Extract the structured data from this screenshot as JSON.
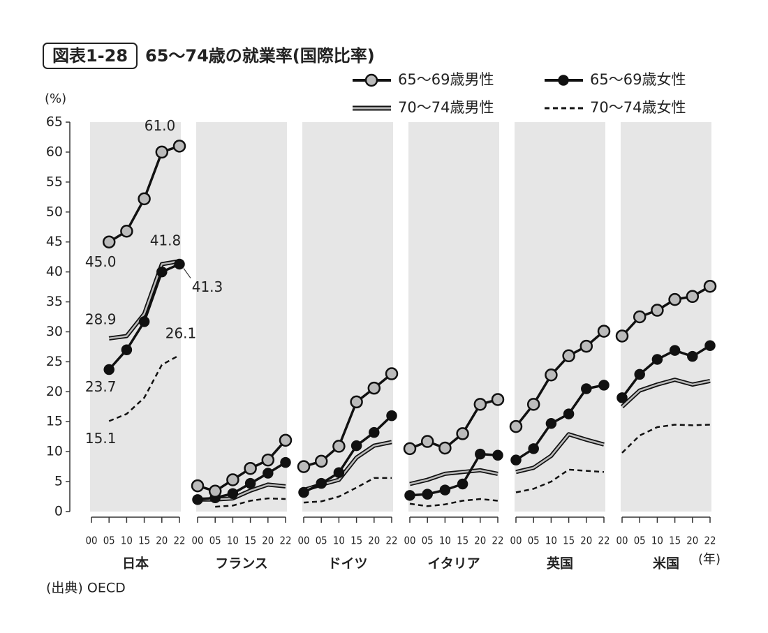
{
  "chart_data": {
    "type": "line",
    "figure_label": "図表1-28",
    "title": "65〜74歳の就業率(国際比率)",
    "y_label": "(%)",
    "x_unit": "(年)",
    "source": "(出典) OECD",
    "x": [
      "00",
      "05",
      "10",
      "15",
      "20",
      "22"
    ],
    "ylim": [
      0,
      65
    ],
    "yticks": [
      0,
      5,
      10,
      15,
      20,
      25,
      30,
      35,
      40,
      45,
      50,
      55,
      60,
      65
    ],
    "series": [
      {
        "name": "65〜69歳男性",
        "color": "#111111",
        "style": "marker-gray"
      },
      {
        "name": "65〜69歳女性",
        "color": "#111111",
        "style": "marker-black"
      },
      {
        "name": "70〜74歳男性",
        "color": "#111111",
        "style": "double"
      },
      {
        "name": "70〜74歳女性",
        "color": "#111111",
        "style": "dashed"
      }
    ],
    "panels": [
      {
        "name": "日本",
        "values": [
          [
            null,
            45.0,
            46.8,
            52.2,
            60.0,
            61.0
          ],
          [
            null,
            23.7,
            27.0,
            31.7,
            40.0,
            41.3
          ],
          [
            null,
            28.9,
            29.3,
            33.0,
            41.3,
            41.8
          ],
          [
            null,
            15.1,
            16.3,
            19.0,
            24.5,
            26.1
          ]
        ],
        "value_labels": [
          [
            null,
            "45.0",
            null,
            null,
            null,
            "61.0"
          ],
          [
            null,
            "23.7",
            null,
            null,
            null,
            "41.3"
          ],
          [
            null,
            "28.9",
            null,
            null,
            null,
            "41.8"
          ],
          [
            null,
            "15.1",
            null,
            null,
            null,
            "26.1"
          ]
        ]
      },
      {
        "name": "フランス",
        "values": [
          [
            4.3,
            3.4,
            5.3,
            7.2,
            8.6,
            11.9
          ],
          [
            2.0,
            2.3,
            3.0,
            4.7,
            6.4,
            8.2
          ],
          [
            2.0,
            2.0,
            2.2,
            3.5,
            4.5,
            4.2
          ],
          [
            null,
            0.8,
            1.0,
            1.8,
            2.2,
            2.1
          ]
        ]
      },
      {
        "name": "ドイツ",
        "values": [
          [
            7.5,
            8.4,
            10.9,
            18.3,
            20.6,
            23.0
          ],
          [
            3.2,
            4.7,
            6.5,
            11.0,
            13.2,
            16.0
          ],
          [
            3.6,
            4.5,
            5.3,
            9.0,
            11.0,
            11.6
          ],
          [
            1.5,
            1.7,
            2.5,
            4.0,
            5.6,
            5.6
          ]
        ]
      },
      {
        "name": "イタリア",
        "values": [
          [
            10.5,
            11.7,
            10.6,
            13.0,
            17.9,
            18.7
          ],
          [
            2.7,
            2.9,
            3.6,
            4.6,
            9.6,
            9.4
          ],
          [
            4.6,
            5.3,
            6.3,
            6.6,
            6.9,
            6.3
          ],
          [
            1.3,
            0.9,
            1.2,
            1.8,
            2.1,
            1.8
          ]
        ]
      },
      {
        "name": "英国",
        "values": [
          [
            14.2,
            17.9,
            22.8,
            26.0,
            27.6,
            30.1
          ],
          [
            8.6,
            10.5,
            14.7,
            16.3,
            20.5,
            21.1
          ],
          [
            6.6,
            7.3,
            9.3,
            12.9,
            12.0,
            11.2
          ],
          [
            3.2,
            3.8,
            5.0,
            7.0,
            6.8,
            6.6
          ]
        ]
      },
      {
        "name": "米国",
        "values": [
          [
            29.3,
            32.5,
            33.6,
            35.4,
            35.9,
            37.6
          ],
          [
            19.0,
            22.9,
            25.4,
            26.9,
            25.9,
            27.7
          ],
          [
            17.5,
            20.2,
            21.2,
            22.0,
            21.2,
            21.8
          ],
          [
            9.8,
            12.7,
            14.1,
            14.5,
            14.4,
            14.5
          ]
        ]
      }
    ]
  }
}
